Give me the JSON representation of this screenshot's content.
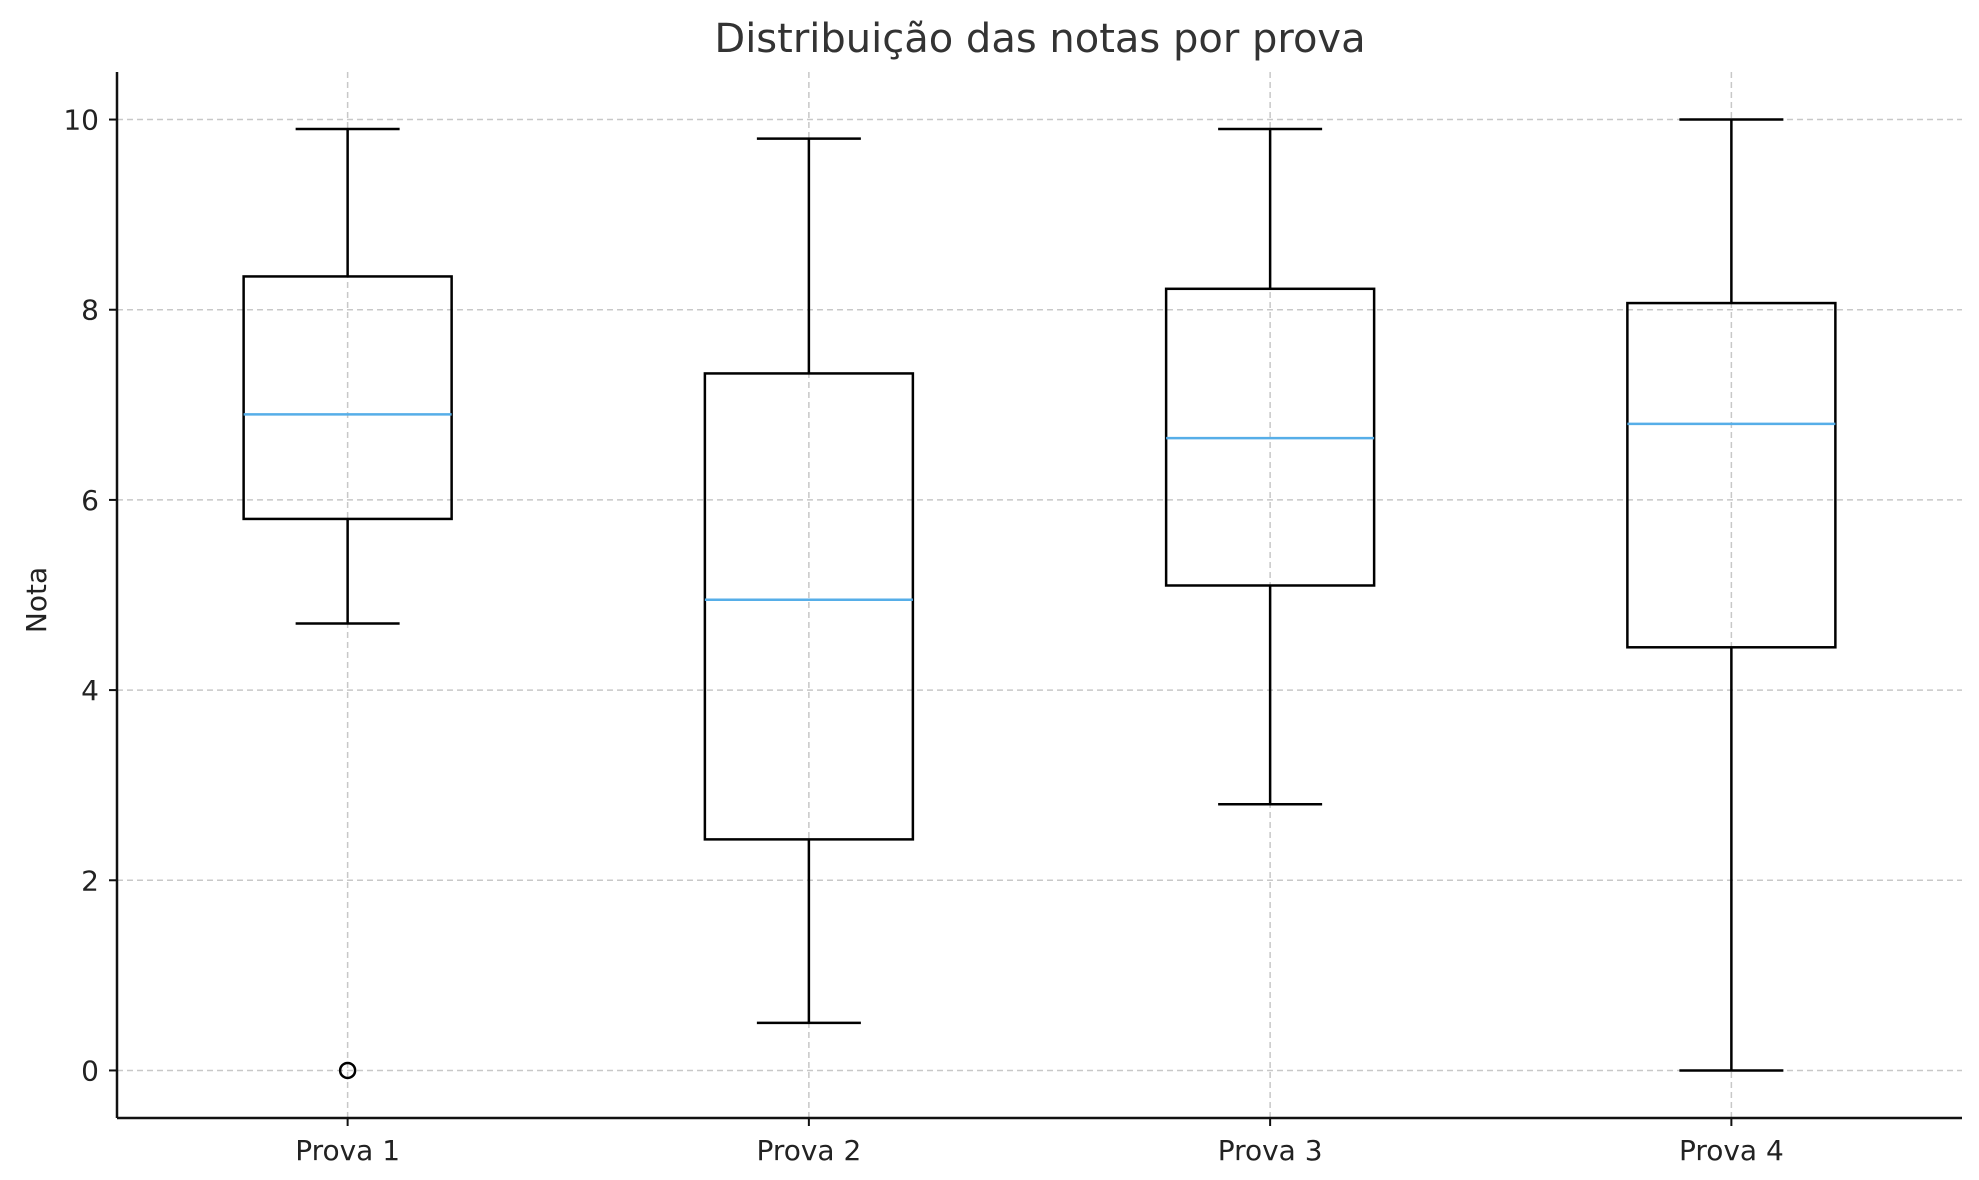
{
  "chart_data": {
    "type": "boxplot",
    "title": "Distribuição das notas por prova",
    "xlabel": "",
    "ylabel": "Nota",
    "ylim": [
      -0.5,
      10.5
    ],
    "yticks": [
      0,
      2,
      4,
      6,
      8,
      10
    ],
    "grid": true,
    "colors": {
      "median": "#56aee8",
      "box": "#000000"
    },
    "categories": [
      "Prova 1",
      "Prova 2",
      "Prova 3",
      "Prova 4"
    ],
    "boxes": [
      {
        "whisker_low": 4.7,
        "q1": 5.8,
        "median": 6.9,
        "q3": 8.35,
        "whisker_high": 9.9,
        "outliers": [
          0
        ]
      },
      {
        "whisker_low": 0.5,
        "q1": 2.43,
        "median": 4.95,
        "q3": 7.33,
        "whisker_high": 9.8,
        "outliers": []
      },
      {
        "whisker_low": 2.8,
        "q1": 5.1,
        "median": 6.65,
        "q3": 8.22,
        "whisker_high": 9.9,
        "outliers": []
      },
      {
        "whisker_low": 0.0,
        "q1": 4.45,
        "median": 6.8,
        "q3": 8.07,
        "whisker_high": 10.0,
        "outliers": []
      }
    ]
  }
}
